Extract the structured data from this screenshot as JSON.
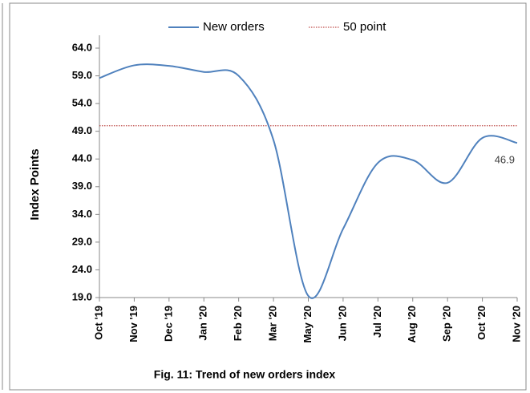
{
  "chart_data": {
    "type": "line",
    "title": "Fig. 11: Trend of  new orders index",
    "y_label": "Index Points",
    "categories": [
      "Oct '19",
      "Nov '19",
      "Dec '19",
      "Jan '20",
      "Feb '20",
      "Mar '20",
      "May '20",
      "Jun '20",
      "Jul '20",
      "Aug '20",
      "Sep '20",
      "Oct '20",
      "Nov '20"
    ],
    "series": [
      {
        "name": "New orders",
        "color": "#4f81bd",
        "values": [
          58.6,
          60.9,
          60.8,
          59.7,
          59.0,
          47.4,
          19.3,
          31.4,
          43.3,
          43.8,
          39.7,
          47.8,
          46.9
        ]
      }
    ],
    "reference_line": {
      "name": "50 point",
      "value": 50,
      "color": "#c0504d"
    },
    "ylim": [
      19,
      64
    ],
    "yticks": [
      {
        "value": 19,
        "label": "19.0"
      },
      {
        "value": 24,
        "label": "24.0"
      },
      {
        "value": 29,
        "label": "29.0"
      },
      {
        "value": 34,
        "label": "34.0"
      },
      {
        "value": 39,
        "label": "39.0"
      },
      {
        "value": 44,
        "label": "44.0"
      },
      {
        "value": 49,
        "label": "49.0"
      },
      {
        "value": 54,
        "label": "54.0"
      },
      {
        "value": 59,
        "label": "59.0"
      },
      {
        "value": 64,
        "label": "64.0"
      }
    ],
    "legend": "top"
  }
}
